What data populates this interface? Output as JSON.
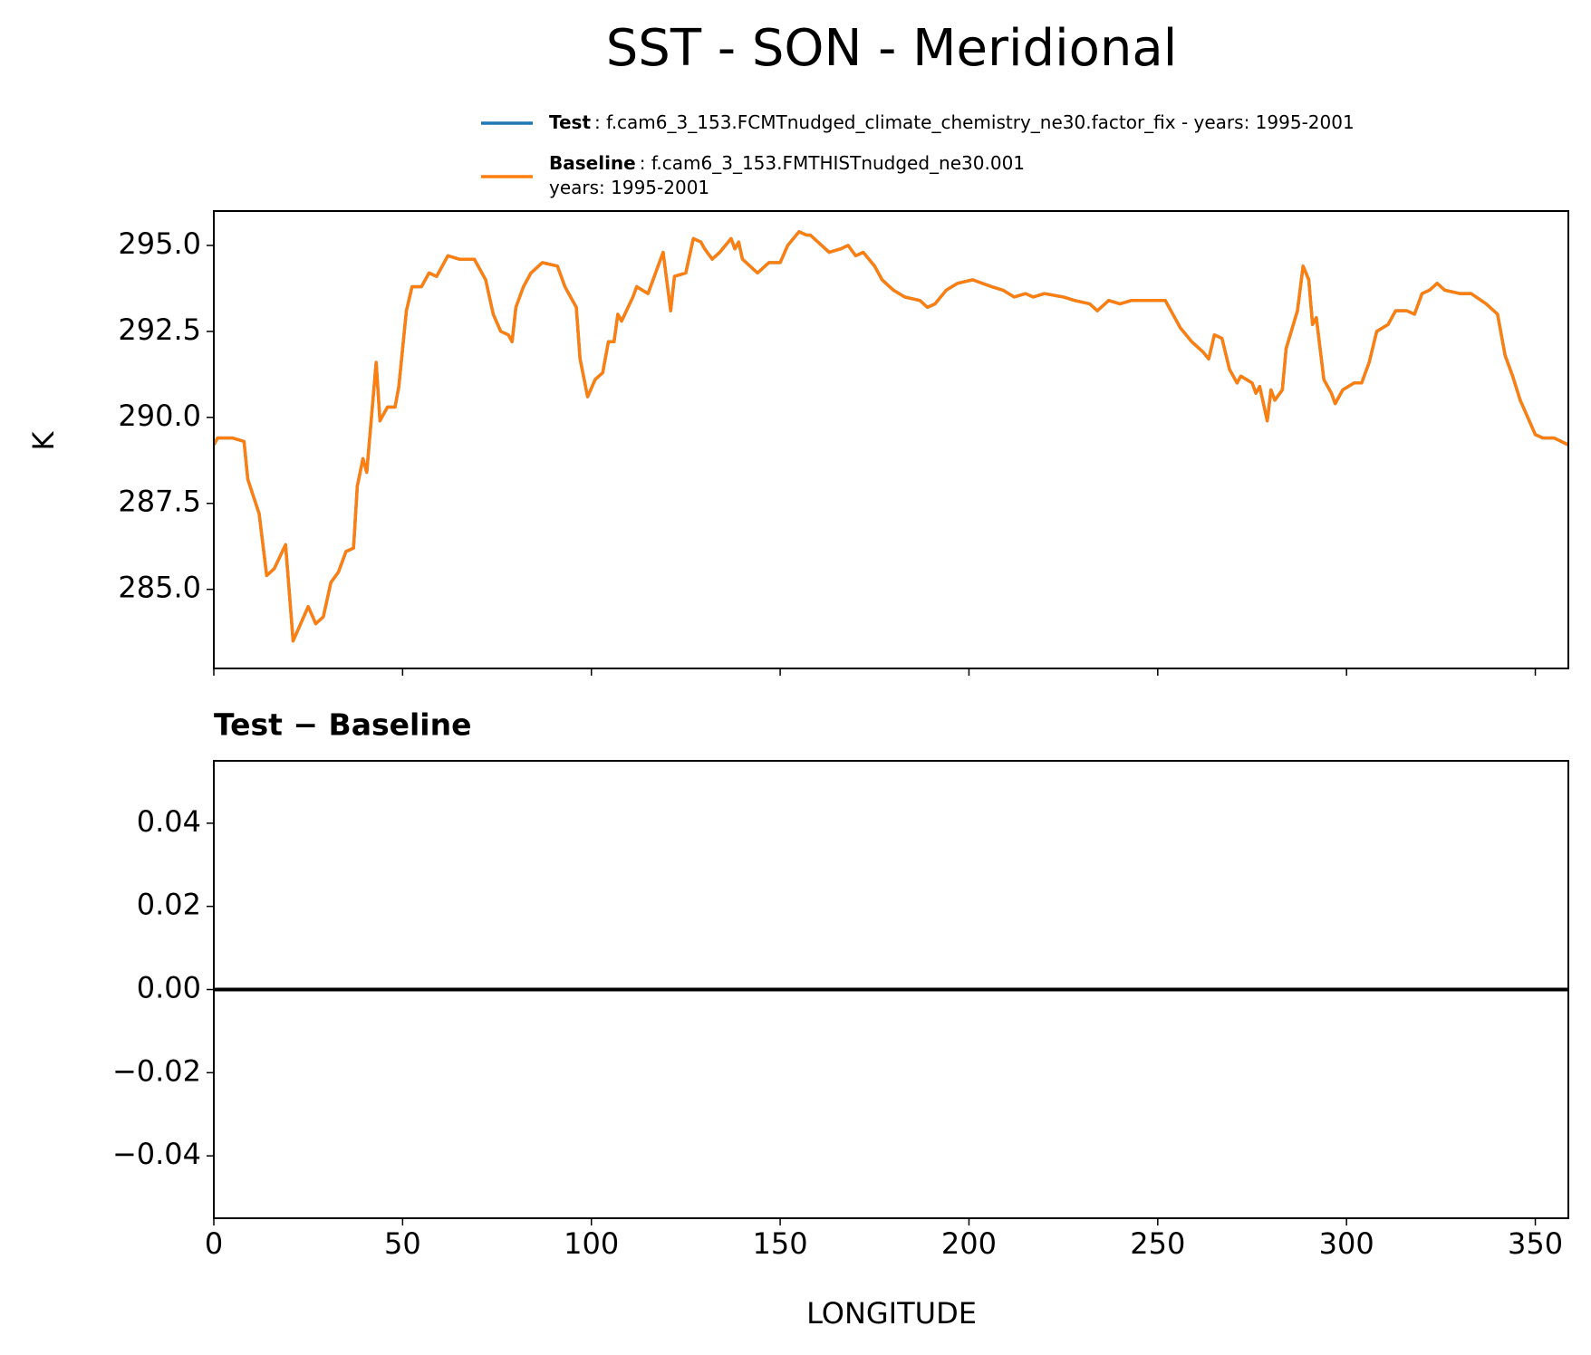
{
  "chart_data": [
    {
      "type": "line",
      "title": "SST - SON - Meridional",
      "ylabel": "K",
      "x": [
        0,
        1,
        5,
        8,
        9,
        12,
        14,
        16,
        19,
        21,
        23,
        25,
        27,
        29,
        31,
        33,
        35,
        37,
        38,
        39.5,
        40.5,
        43,
        44,
        46,
        48,
        49,
        51,
        52.5,
        55,
        57,
        59,
        62,
        65,
        67,
        69,
        72,
        74,
        76,
        78,
        79,
        80,
        82,
        84,
        87,
        91,
        93,
        96,
        97,
        99,
        101,
        103,
        104.5,
        106,
        107,
        108,
        111,
        112,
        115,
        117,
        119,
        121,
        122,
        125,
        127,
        129,
        130,
        132,
        134,
        137,
        138,
        139,
        140,
        144,
        147,
        150,
        152,
        155,
        157,
        158,
        161,
        163,
        166,
        168,
        170,
        172,
        175,
        177,
        180,
        183,
        187,
        189,
        191,
        194,
        197,
        201,
        206,
        209,
        212,
        215,
        217,
        220,
        225,
        228,
        232,
        234,
        237,
        240,
        243,
        249,
        252,
        254,
        256,
        259,
        262,
        263.5,
        265,
        267,
        269,
        271,
        272,
        275,
        276,
        277,
        279,
        280,
        281,
        283,
        284,
        287,
        288.5,
        290,
        291,
        292,
        294,
        296,
        297,
        299,
        302,
        304,
        306,
        308,
        311,
        313,
        316,
        318,
        320,
        322,
        324,
        326,
        330,
        333,
        337,
        340,
        342,
        344,
        346,
        348,
        350,
        352,
        355,
        358.75
      ],
      "series": [
        {
          "name": "Test",
          "description": [
            ": f.cam6_3_153.FCMTnudged_climate_chemistry_ne30.factor_fix - years: 1995-2001"
          ],
          "color": "#1f77b4",
          "values": [
            289.2,
            289.4,
            289.4,
            289.3,
            288.2,
            287.2,
            285.4,
            285.6,
            286.3,
            283.5,
            284.0,
            284.5,
            284.0,
            284.2,
            285.2,
            285.5,
            286.1,
            286.2,
            288.0,
            288.8,
            288.4,
            291.6,
            289.9,
            290.3,
            290.3,
            290.9,
            293.1,
            293.8,
            293.8,
            294.2,
            294.1,
            294.7,
            294.6,
            294.6,
            294.6,
            294.0,
            293.0,
            292.5,
            292.4,
            292.2,
            293.2,
            293.8,
            294.2,
            294.5,
            294.4,
            293.8,
            293.2,
            291.7,
            290.6,
            291.1,
            291.3,
            292.2,
            292.2,
            293.0,
            292.8,
            293.5,
            293.8,
            293.6,
            294.2,
            294.8,
            293.1,
            294.1,
            294.2,
            295.2,
            295.1,
            294.9,
            294.6,
            294.8,
            295.2,
            294.9,
            295.1,
            294.6,
            294.2,
            294.5,
            294.5,
            295.0,
            295.4,
            295.3,
            295.3,
            295.0,
            294.8,
            294.9,
            295.0,
            294.7,
            294.8,
            294.4,
            294.0,
            293.7,
            293.5,
            293.4,
            293.2,
            293.3,
            293.7,
            293.9,
            294.0,
            293.8,
            293.7,
            293.5,
            293.6,
            293.5,
            293.6,
            293.5,
            293.4,
            293.3,
            293.1,
            293.4,
            293.3,
            293.4,
            293.4,
            293.4,
            293.0,
            292.6,
            292.2,
            291.9,
            291.7,
            292.4,
            292.3,
            291.4,
            291.0,
            291.2,
            291.0,
            290.7,
            290.9,
            289.9,
            290.8,
            290.5,
            290.8,
            292.0,
            293.1,
            294.4,
            294.0,
            292.7,
            292.9,
            291.1,
            290.7,
            290.4,
            290.8,
            291.0,
            291.0,
            291.6,
            292.5,
            292.7,
            293.1,
            293.1,
            293.0,
            293.6,
            293.7,
            293.9,
            293.7,
            293.6,
            293.6,
            293.3,
            293.0,
            291.8,
            291.2,
            290.5,
            290.0,
            289.5,
            289.4,
            289.4,
            289.2
          ]
        },
        {
          "name": "Baseline",
          "description": [
            ": f.cam6_3_153.FMTHISTnudged_ne30.001",
            "years: 1995-2001"
          ],
          "color": "#ff7f0e",
          "values": [
            289.2,
            289.4,
            289.4,
            289.3,
            288.2,
            287.2,
            285.4,
            285.6,
            286.3,
            283.5,
            284.0,
            284.5,
            284.0,
            284.2,
            285.2,
            285.5,
            286.1,
            286.2,
            288.0,
            288.8,
            288.4,
            291.6,
            289.9,
            290.3,
            290.3,
            290.9,
            293.1,
            293.8,
            293.8,
            294.2,
            294.1,
            294.7,
            294.6,
            294.6,
            294.6,
            294.0,
            293.0,
            292.5,
            292.4,
            292.2,
            293.2,
            293.8,
            294.2,
            294.5,
            294.4,
            293.8,
            293.2,
            291.7,
            290.6,
            291.1,
            291.3,
            292.2,
            292.2,
            293.0,
            292.8,
            293.5,
            293.8,
            293.6,
            294.2,
            294.8,
            293.1,
            294.1,
            294.2,
            295.2,
            295.1,
            294.9,
            294.6,
            294.8,
            295.2,
            294.9,
            295.1,
            294.6,
            294.2,
            294.5,
            294.5,
            295.0,
            295.4,
            295.3,
            295.3,
            295.0,
            294.8,
            294.9,
            295.0,
            294.7,
            294.8,
            294.4,
            294.0,
            293.7,
            293.5,
            293.4,
            293.2,
            293.3,
            293.7,
            293.9,
            294.0,
            293.8,
            293.7,
            293.5,
            293.6,
            293.5,
            293.6,
            293.5,
            293.4,
            293.3,
            293.1,
            293.4,
            293.3,
            293.4,
            293.4,
            293.4,
            293.0,
            292.6,
            292.2,
            291.9,
            291.7,
            292.4,
            292.3,
            291.4,
            291.0,
            291.2,
            291.0,
            290.7,
            290.9,
            289.9,
            290.8,
            290.5,
            290.8,
            292.0,
            293.1,
            294.4,
            294.0,
            292.7,
            292.9,
            291.1,
            290.7,
            290.4,
            290.8,
            291.0,
            291.0,
            291.6,
            292.5,
            292.7,
            293.1,
            293.1,
            293.0,
            293.6,
            293.7,
            293.9,
            293.7,
            293.6,
            293.6,
            293.3,
            293.0,
            291.8,
            291.2,
            290.5,
            290.0,
            289.5,
            289.4,
            289.4,
            289.2
          ]
        }
      ],
      "xlim": [
        0,
        358.75
      ],
      "xticks": [
        0,
        50,
        100,
        150,
        200,
        250,
        300,
        350
      ],
      "ylim": [
        282.7,
        296.0
      ],
      "yticks": [
        {
          "value": 285,
          "label": "285.0"
        },
        {
          "value": 287.5,
          "label": "287.5"
        },
        {
          "value": 290,
          "label": "290.0"
        },
        {
          "value": 292.5,
          "label": "292.5"
        },
        {
          "value": 295,
          "label": "295.0"
        }
      ]
    },
    {
      "type": "hline",
      "title": "Test − Baseline",
      "xlabel": "LONGITUDE",
      "hline": 0,
      "color": "#000000",
      "xlim": [
        0,
        358.75
      ],
      "xticks": [
        0,
        50,
        100,
        150,
        200,
        250,
        300,
        350
      ],
      "ylim": [
        -0.055,
        0.055
      ],
      "yticks": [
        {
          "value": -0.04,
          "label": "−0.04"
        },
        {
          "value": -0.02,
          "label": "−0.02"
        },
        {
          "value": 0,
          "label": "0.00"
        },
        {
          "value": 0.02,
          "label": "0.02"
        },
        {
          "value": 0.04,
          "label": "0.04"
        }
      ]
    }
  ]
}
